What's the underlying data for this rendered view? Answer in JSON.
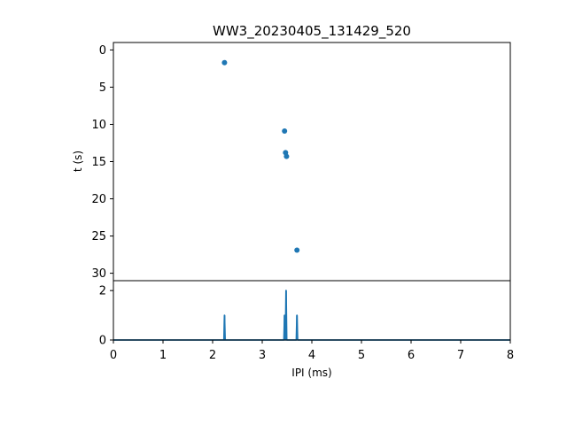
{
  "chart_data": {
    "type": "scatter",
    "title": "WW3_20230405_131429_520",
    "colors": {
      "series": "#1f77b4",
      "axes": "#000000",
      "background": "#ffffff"
    },
    "grid": false,
    "top_panel": {
      "type": "scatter",
      "ylabel": "t (s)",
      "ylim": [
        31,
        -1
      ],
      "y_inverted": true,
      "yticks": [
        "0",
        "5",
        "10",
        "15",
        "20",
        "25",
        "30"
      ],
      "yticks_values": [
        0,
        5,
        10,
        15,
        20,
        25,
        30
      ],
      "points": [
        {
          "x": 2.24,
          "y": 1.7
        },
        {
          "x": 3.45,
          "y": 10.9
        },
        {
          "x": 3.47,
          "y": 13.8
        },
        {
          "x": 3.49,
          "y": 14.3
        },
        {
          "x": 3.7,
          "y": 26.9
        }
      ]
    },
    "bottom_panel": {
      "type": "line",
      "xlabel": "IPI (ms)",
      "xlim": [
        0,
        8
      ],
      "ylim": [
        0,
        2.4
      ],
      "xticks": [
        "0",
        "1",
        "2",
        "3",
        "4",
        "5",
        "6",
        "7",
        "8"
      ],
      "xticks_values": [
        0,
        1,
        2,
        3,
        4,
        5,
        6,
        7,
        8
      ],
      "yticks": [
        "0",
        "2"
      ],
      "yticks_values": [
        0,
        2
      ],
      "peaks": [
        {
          "x": 2.24,
          "y": 1
        },
        {
          "x": 3.45,
          "y": 1
        },
        {
          "x": 3.48,
          "y": 2
        },
        {
          "x": 3.7,
          "y": 1
        }
      ]
    }
  }
}
